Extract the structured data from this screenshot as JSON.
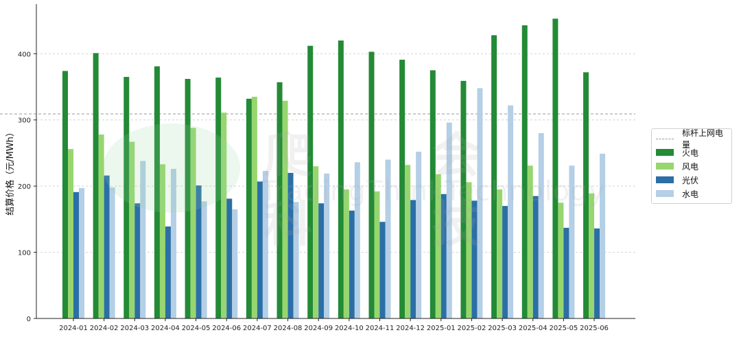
{
  "chart_data": {
    "type": "bar",
    "title": "",
    "xlabel": "",
    "ylabel": "结算价格（元/MWh）",
    "ylim": [
      0,
      475
    ],
    "yticks": [
      0,
      100,
      200,
      300,
      400
    ],
    "categories": [
      "2024-01",
      "2024-02",
      "2024-03",
      "2024-04",
      "2024-05",
      "2024-06",
      "2024-07",
      "2024-08",
      "2024-09",
      "2024-10",
      "2024-11",
      "2024-12",
      "2025-01",
      "2025-02",
      "2025-03",
      "2025-04",
      "2025-05",
      "2025-06"
    ],
    "series": [
      {
        "name": "火电",
        "color": "#238a36",
        "values": [
          374,
          401,
          365,
          381,
          362,
          364,
          332,
          357,
          412,
          420,
          403,
          391,
          375,
          359,
          428,
          443,
          453,
          372
        ]
      },
      {
        "name": "风电",
        "color": "#97d66f",
        "values": [
          256,
          278,
          267,
          233,
          288,
          311,
          335,
          329,
          230,
          195,
          192,
          232,
          218,
          206,
          195,
          231,
          175,
          189
        ]
      },
      {
        "name": "光伏",
        "color": "#2b6fa6",
        "values": [
          191,
          216,
          174,
          139,
          201,
          181,
          207,
          220,
          174,
          163,
          146,
          179,
          188,
          178,
          170,
          185,
          137,
          136
        ]
      },
      {
        "name": "水电",
        "color": "#b4cfe6",
        "values": [
          197,
          198,
          238,
          226,
          177,
          165,
          223,
          176,
          219,
          236,
          240,
          252,
          296,
          348,
          322,
          280,
          231,
          249
        ]
      }
    ],
    "reference_line": {
      "name": "标杆上网电量",
      "value": 309,
      "color": "#999999"
    },
    "legend_position": "right",
    "grid": "horizontal dashed"
  },
  "watermark": {
    "chinese": "爬 会 科 技",
    "english": "TradingThinkTechnology"
  }
}
